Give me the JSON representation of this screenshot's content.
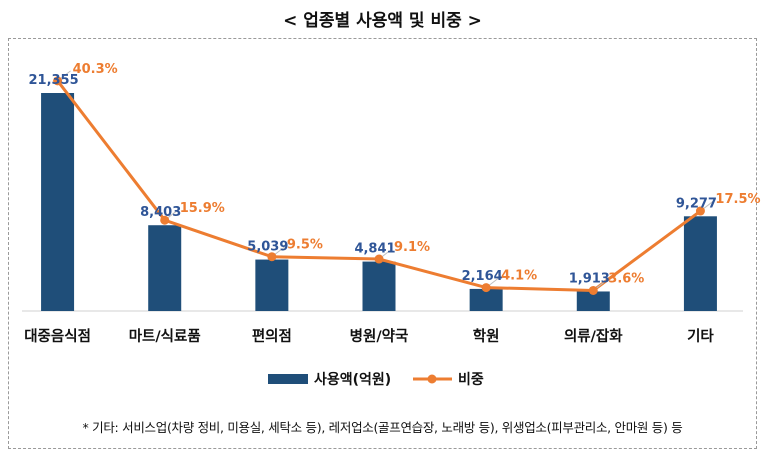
{
  "chart_data": {
    "type": "bar",
    "title": "< 업종별 사용액 및 비중 >",
    "categories": [
      "대중음식점",
      "마트/식료품",
      "편의점",
      "병원/약국",
      "학원",
      "의류/잡화",
      "기타"
    ],
    "series": [
      {
        "name": "사용액(억원)",
        "type": "bar",
        "axis": "primary",
        "color": "#1f4e79",
        "values": [
          21355,
          8403,
          5039,
          4841,
          2164,
          1913,
          9277
        ],
        "labels": [
          "21,355",
          "8,403",
          "5,039",
          "4,841",
          "2,164",
          "1,913",
          "9,277"
        ]
      },
      {
        "name": "비중",
        "type": "line",
        "axis": "secondary",
        "color": "#ed7d31",
        "values": [
          40.3,
          15.9,
          9.5,
          9.1,
          4.1,
          3.6,
          17.5
        ],
        "labels": [
          "40.3%",
          "15.9%",
          "9.5%",
          "9.1%",
          "4.1%",
          "3.6%",
          "17.5%"
        ]
      }
    ],
    "ylim": [
      0,
      24000
    ],
    "y2lim": [
      0,
      45
    ],
    "grid": false,
    "legend": "bottom",
    "label_color": "#2f5597"
  },
  "footnote": "* 기타: 서비스업(차량 정비, 미용실, 세탁소 등), 레저업소(골프연습장, 노래방 등), 위생업소(피부관리소, 안마원 등) 등"
}
